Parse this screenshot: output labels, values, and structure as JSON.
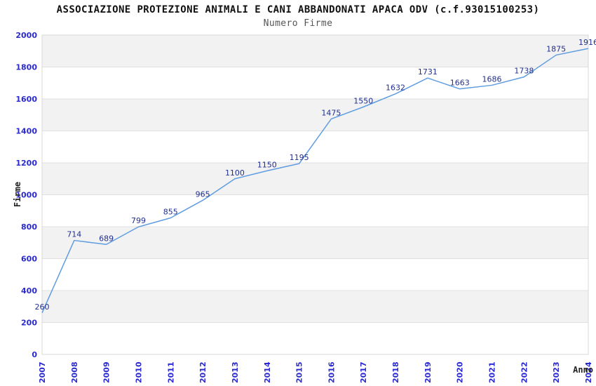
{
  "chart_data": {
    "type": "line",
    "title": "ASSOCIAZIONE PROTEZIONE ANIMALI E CANI ABBANDONATI APACA ODV (c.f.93015100253)",
    "subtitle": "Numero Firme",
    "xlabel": "Anno",
    "ylabel": "Firme",
    "categories": [
      "2007",
      "2008",
      "2009",
      "2010",
      "2011",
      "2012",
      "2013",
      "2014",
      "2015",
      "2016",
      "2017",
      "2018",
      "2019",
      "2020",
      "2021",
      "2022",
      "2023",
      "2024"
    ],
    "values": [
      260,
      714,
      689,
      799,
      855,
      965,
      1100,
      1150,
      1195,
      1475,
      1550,
      1632,
      1731,
      1663,
      1686,
      1738,
      1875,
      1916
    ],
    "value_labels": [
      "260",
      "714",
      "689",
      "799",
      "855",
      "965",
      "1100",
      "1150",
      "1195",
      "1475",
      "1550",
      "1632",
      "1731",
      "1663",
      "1686",
      "1738",
      "1875",
      "1916"
    ],
    "ylim": [
      0,
      2000
    ],
    "ytick_step": 200,
    "ytick_labels": [
      "0",
      "200",
      "400",
      "600",
      "800",
      "1000",
      "1200",
      "1400",
      "1600",
      "1800",
      "2000"
    ],
    "grid": true,
    "banded_background": true,
    "legend_position": "none",
    "markers": "none",
    "x_tick_rotation_deg": -90,
    "colors": {
      "line": "#5f9de0",
      "value_label": "#22308f",
      "tick_label": "#2a2ad0",
      "band": "#f2f2f2",
      "band_alt": "#ffffff",
      "gridline": "#e0e0e0",
      "plot_border": "#d8d8d8",
      "title": "#111111",
      "subtitle": "#555555",
      "axis_title": "#222222",
      "background": "#ffffff"
    }
  }
}
